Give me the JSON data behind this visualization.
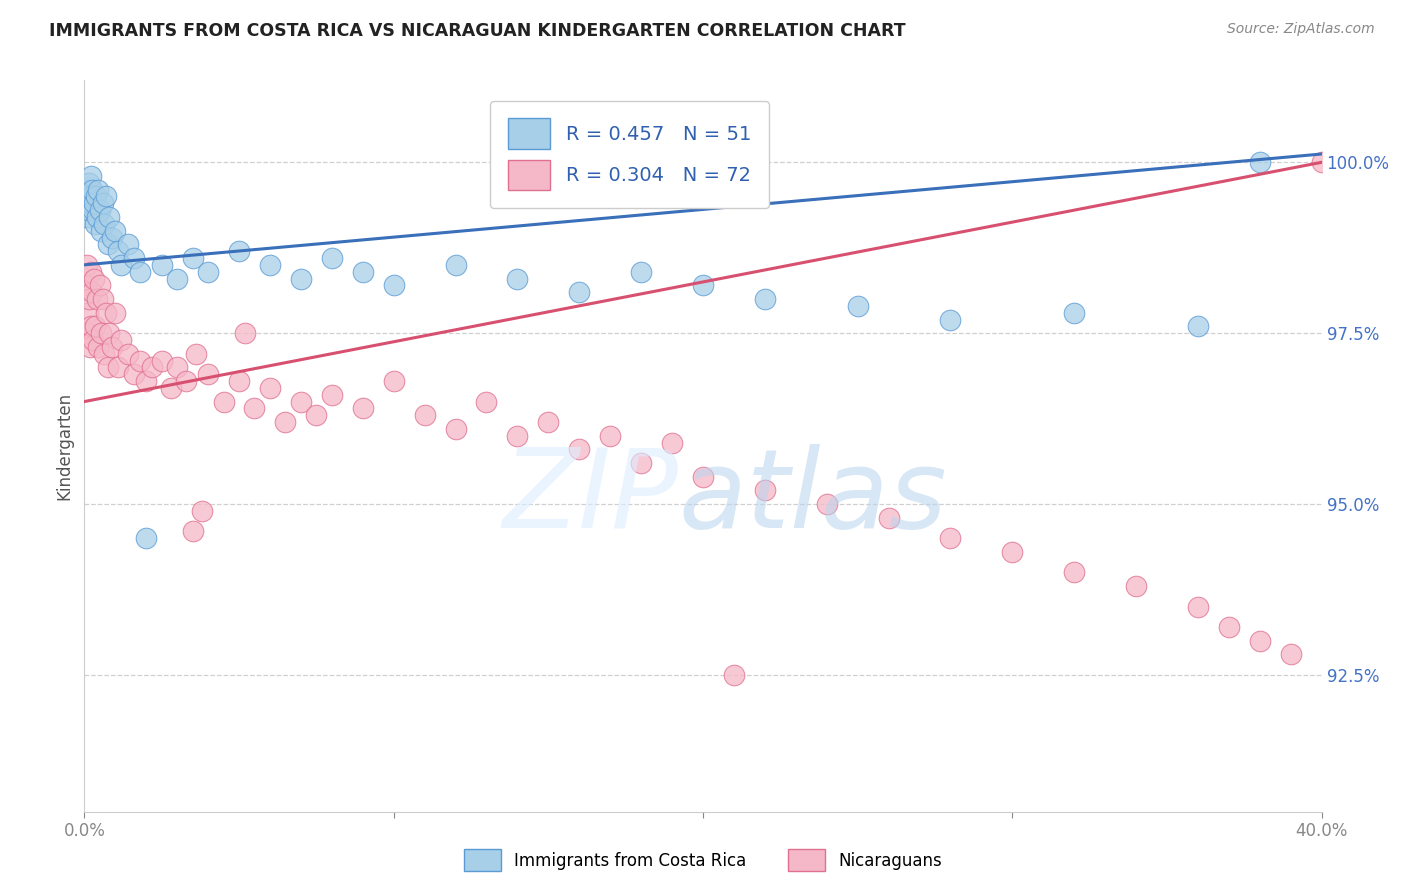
{
  "title": "IMMIGRANTS FROM COSTA RICA VS NICARAGUAN KINDERGARTEN CORRELATION CHART",
  "source": "Source: ZipAtlas.com",
  "ylabel": "Kindergarten",
  "legend_label1": "Immigrants from Costa Rica",
  "legend_label2": "Nicaraguans",
  "legend_r1": "R = 0.457",
  "legend_n1": "N = 51",
  "legend_r2": "R = 0.304",
  "legend_n2": "N = 72",
  "blue_color": "#a8cfe8",
  "pink_color": "#f5b8c8",
  "blue_edge_color": "#5b9bd5",
  "pink_edge_color": "#e07090",
  "blue_line_color": "#3a6fba",
  "pink_line_color": "#d85070",
  "blue_x": [
    0.05,
    0.08,
    0.1,
    0.12,
    0.15,
    0.18,
    0.2,
    0.22,
    0.25,
    0.28,
    0.3,
    0.35,
    0.38,
    0.4,
    0.45,
    0.5,
    0.55,
    0.6,
    0.65,
    0.7,
    0.75,
    0.8,
    0.9,
    1.0,
    1.1,
    1.2,
    1.4,
    1.6,
    1.8,
    2.0,
    2.5,
    3.0,
    3.5,
    4.0,
    5.0,
    6.0,
    7.0,
    8.0,
    9.0,
    10.0,
    12.0,
    14.0,
    16.0,
    18.0,
    20.0,
    22.0,
    25.0,
    28.0,
    32.0,
    36.0,
    38.0
  ],
  "blue_y": [
    99.5,
    99.2,
    99.6,
    99.3,
    99.7,
    99.4,
    99.8,
    99.5,
    99.6,
    99.3,
    99.4,
    99.1,
    99.5,
    99.2,
    99.6,
    99.3,
    99.0,
    99.4,
    99.1,
    99.5,
    98.8,
    99.2,
    98.9,
    99.0,
    98.7,
    98.5,
    98.8,
    98.6,
    98.4,
    94.5,
    98.5,
    98.3,
    98.6,
    98.4,
    98.7,
    98.5,
    98.3,
    98.6,
    98.4,
    98.2,
    98.5,
    98.3,
    98.1,
    98.4,
    98.2,
    98.0,
    97.9,
    97.7,
    97.8,
    97.6,
    100.0
  ],
  "pink_x": [
    0.05,
    0.08,
    0.1,
    0.12,
    0.15,
    0.18,
    0.2,
    0.22,
    0.25,
    0.28,
    0.3,
    0.35,
    0.4,
    0.45,
    0.5,
    0.55,
    0.6,
    0.65,
    0.7,
    0.75,
    0.8,
    0.9,
    1.0,
    1.1,
    1.2,
    1.4,
    1.6,
    1.8,
    2.0,
    2.2,
    2.5,
    2.8,
    3.0,
    3.3,
    3.6,
    4.0,
    4.5,
    5.0,
    5.5,
    6.0,
    6.5,
    7.0,
    7.5,
    8.0,
    9.0,
    10.0,
    11.0,
    12.0,
    13.0,
    14.0,
    15.0,
    16.0,
    17.0,
    18.0,
    19.0,
    20.0,
    22.0,
    24.0,
    26.0,
    28.0,
    30.0,
    32.0,
    34.0,
    36.0,
    37.0,
    38.0,
    39.0,
    40.0,
    3.5,
    3.8,
    5.2,
    21.0
  ],
  "pink_y": [
    98.2,
    97.5,
    98.5,
    97.8,
    98.0,
    97.3,
    98.4,
    97.6,
    98.1,
    97.4,
    98.3,
    97.6,
    98.0,
    97.3,
    98.2,
    97.5,
    98.0,
    97.2,
    97.8,
    97.0,
    97.5,
    97.3,
    97.8,
    97.0,
    97.4,
    97.2,
    96.9,
    97.1,
    96.8,
    97.0,
    97.1,
    96.7,
    97.0,
    96.8,
    97.2,
    96.9,
    96.5,
    96.8,
    96.4,
    96.7,
    96.2,
    96.5,
    96.3,
    96.6,
    96.4,
    96.8,
    96.3,
    96.1,
    96.5,
    96.0,
    96.2,
    95.8,
    96.0,
    95.6,
    95.9,
    95.4,
    95.2,
    95.0,
    94.8,
    94.5,
    94.3,
    94.0,
    93.8,
    93.5,
    93.2,
    93.0,
    92.8,
    100.0,
    94.6,
    94.9,
    97.5,
    92.5
  ]
}
